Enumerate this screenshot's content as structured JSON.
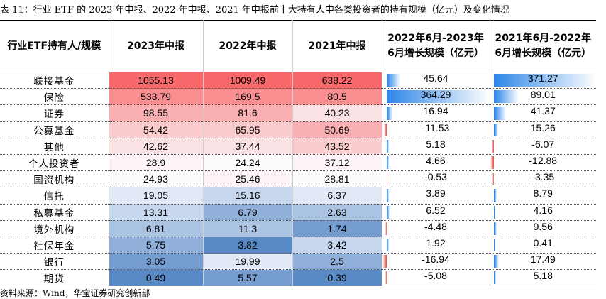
{
  "title": "表 11：行业 ETF 的 2023 年中报、2022 年中报、2021 年中报前十大持有人中各类投资者的持有规模（亿元）及变化情况",
  "headers": {
    "col0": "行业ETF持有人/规模",
    "col1": "2023年中报",
    "col2": "2022年中报",
    "col3": "2021年中报",
    "col4": "2022年6月-2023年6月增长规模（亿元）",
    "col5": "2021年6月-2022年6月增长规模（亿元）"
  },
  "rows": [
    {
      "cat": "联接基金",
      "v2023": "1055.13",
      "v2022": "1009.49",
      "v2021": "638.22",
      "g1": "45.64",
      "g2": "371.27"
    },
    {
      "cat": "保险",
      "v2023": "533.79",
      "v2022": "169.5",
      "v2021": "80.5",
      "g1": "364.29",
      "g2": "89.01"
    },
    {
      "cat": "证券",
      "v2023": "98.55",
      "v2022": "81.6",
      "v2021": "40.23",
      "g1": "16.94",
      "g2": "41.37"
    },
    {
      "cat": "公募基金",
      "v2023": "54.42",
      "v2022": "65.95",
      "v2021": "50.69",
      "g1": "-11.53",
      "g2": "15.26"
    },
    {
      "cat": "其他",
      "v2023": "42.62",
      "v2022": "37.44",
      "v2021": "43.52",
      "g1": "5.18",
      "g2": "-6.07"
    },
    {
      "cat": "个人投资者",
      "v2023": "28.9",
      "v2022": "24.24",
      "v2021": "37.12",
      "g1": "4.66",
      "g2": "-12.88"
    },
    {
      "cat": "国资机构",
      "v2023": "24.93",
      "v2022": "25.46",
      "v2021": "28.81",
      "g1": "-0.53",
      "g2": "-3.35"
    },
    {
      "cat": "信托",
      "v2023": "19.05",
      "v2022": "15.16",
      "v2021": "6.37",
      "g1": "3.89",
      "g2": "8.79"
    },
    {
      "cat": "私募基金",
      "v2023": "13.31",
      "v2022": "6.79",
      "v2021": "2.63",
      "g1": "6.52",
      "g2": "4.16"
    },
    {
      "cat": "境外机构",
      "v2023": "6.81",
      "v2022": "11.3",
      "v2021": "1.74",
      "g1": "-4.48",
      "g2": "9.56"
    },
    {
      "cat": "社保年金",
      "v2023": "5.75",
      "v2022": "3.82",
      "v2021": "3.42",
      "g1": "1.92",
      "g2": "0.41"
    },
    {
      "cat": "银行",
      "v2023": "3.05",
      "v2022": "19.99",
      "v2021": "2.5",
      "g1": "-16.94",
      "g2": "17.49"
    },
    {
      "cat": "期货",
      "v2023": "0.49",
      "v2022": "5.57",
      "v2021": "0.39",
      "g1": "-5.08",
      "g2": "5.18"
    }
  ],
  "footer": "资料来源：Wind，华宝证券研究创新部",
  "colors": {
    "heat_high": "#f8696b",
    "heat_mid": "#fcfcff",
    "heat_low": "#5a8ac6",
    "bar_pos": "#2e86e8",
    "bar_neg": "#e8483a"
  }
}
